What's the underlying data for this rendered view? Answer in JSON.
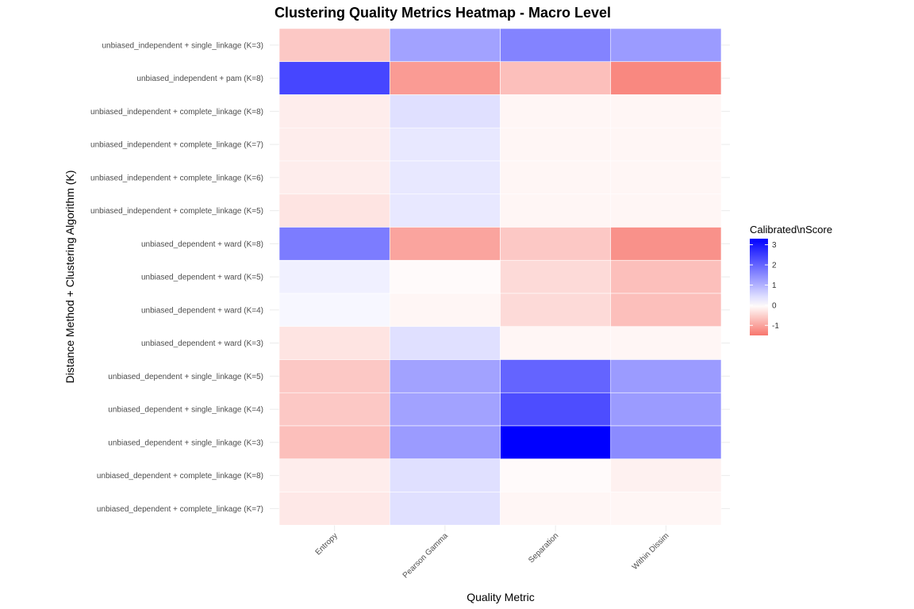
{
  "chart_data": {
    "type": "heatmap",
    "title": "Clustering Quality Metrics Heatmap - Macro Level",
    "xlabel": "Quality Metric",
    "ylabel": "Distance Method + Clustering Algorithm (K)",
    "x_categories": [
      "Entropy",
      "Pearson Gamma",
      "Separation",
      "Within Dissim"
    ],
    "y_categories": [
      "unbiased_independent + single_linkage (K=3)",
      "unbiased_independent + pam (K=8)",
      "unbiased_independent + complete_linkage (K=8)",
      "unbiased_independent + complete_linkage (K=7)",
      "unbiased_independent + complete_linkage (K=6)",
      "unbiased_independent + complete_linkage (K=5)",
      "unbiased_dependent + ward (K=8)",
      "unbiased_dependent + ward (K=5)",
      "unbiased_dependent + ward (K=4)",
      "unbiased_dependent + ward (K=3)",
      "unbiased_dependent + single_linkage (K=5)",
      "unbiased_dependent + single_linkage (K=4)",
      "unbiased_dependent + single_linkage (K=3)",
      "unbiased_dependent + complete_linkage (K=8)",
      "unbiased_dependent + complete_linkage (K=7)"
    ],
    "values": [
      [
        -0.6,
        1.2,
        1.6,
        1.3
      ],
      [
        2.4,
        -1.1,
        -0.7,
        -1.3
      ],
      [
        -0.2,
        0.4,
        -0.1,
        -0.1
      ],
      [
        -0.2,
        0.3,
        -0.1,
        -0.1
      ],
      [
        -0.2,
        0.3,
        -0.1,
        -0.1
      ],
      [
        -0.3,
        0.3,
        -0.1,
        -0.1
      ],
      [
        1.7,
        -1.0,
        -0.6,
        -1.2
      ],
      [
        0.2,
        -0.05,
        -0.4,
        -0.7
      ],
      [
        0.1,
        -0.1,
        -0.4,
        -0.7
      ],
      [
        -0.3,
        0.4,
        -0.1,
        -0.1
      ],
      [
        -0.6,
        1.2,
        2.0,
        1.3
      ],
      [
        -0.6,
        1.2,
        2.3,
        1.3
      ],
      [
        -0.7,
        1.3,
        3.3,
        1.5
      ],
      [
        -0.2,
        0.4,
        -0.05,
        -0.15
      ],
      [
        -0.25,
        0.4,
        -0.1,
        -0.1
      ]
    ],
    "colors": {
      "low": "#f8766d",
      "mid": "#ffffff",
      "high": "#0000ff"
    },
    "legend": {
      "title": "Calibrated\\nScore",
      "ticks": [
        3,
        2,
        1,
        0,
        -1
      ],
      "tick_labels": [
        "3",
        "2",
        "1",
        "0",
        "-1"
      ],
      "min": -1.5,
      "max": 3.3,
      "placement": "right"
    },
    "grid": true
  }
}
